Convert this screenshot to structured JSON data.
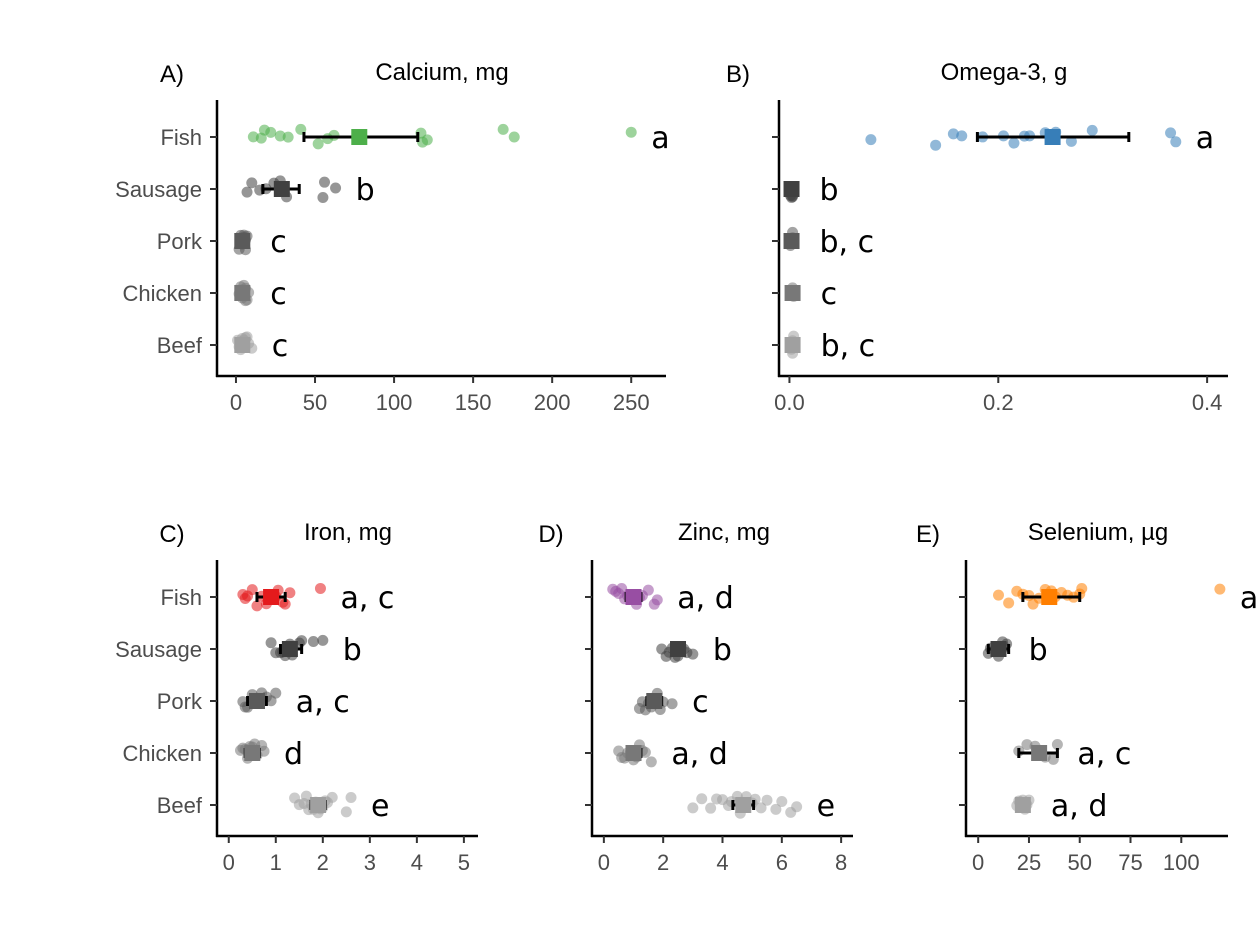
{
  "categories": [
    "Fish",
    "Sausage",
    "Pork",
    "Chicken",
    "Beef"
  ],
  "chart_data": [
    {
      "type": "scatter",
      "tag": "A)",
      "title": "Calcium, mg",
      "xlim": [
        -12,
        272
      ],
      "xticks": [
        0,
        50,
        100,
        150,
        200,
        250
      ],
      "color": "#4daf4a",
      "series": [
        {
          "category": "Fish",
          "mean": 78,
          "ci": [
            43,
            115
          ],
          "sig": "a",
          "color": "#4daf4a",
          "points": [
            11,
            16,
            18,
            22,
            28,
            33,
            41,
            52,
            58,
            62,
            117,
            118,
            121,
            169,
            176,
            250
          ]
        },
        {
          "category": "Sausage",
          "mean": 29,
          "ci": [
            17,
            40
          ],
          "sig": "b",
          "color": "#404040",
          "points": [
            7,
            10,
            15,
            19,
            24,
            28,
            32,
            55,
            56,
            63
          ]
        },
        {
          "category": "Pork",
          "mean": 4,
          "ci": [
            3,
            5
          ],
          "sig": "c",
          "color": "#5a5a5a",
          "points": [
            2,
            3,
            3,
            4,
            4,
            5,
            5,
            6,
            6,
            7
          ]
        },
        {
          "category": "Chicken",
          "mean": 4,
          "ci": [
            3,
            5
          ],
          "sig": "c",
          "color": "#787878",
          "points": [
            2,
            3,
            3,
            4,
            4,
            5,
            5,
            6,
            6,
            7,
            8
          ]
        },
        {
          "category": "Beef",
          "mean": 4,
          "ci": [
            3,
            5
          ],
          "sig": "c",
          "color": "#a0a0a0",
          "points": [
            1,
            2,
            3,
            3,
            4,
            4,
            5,
            5,
            6,
            7,
            8,
            10
          ]
        }
      ]
    },
    {
      "type": "scatter",
      "tag": "B)",
      "title": "Omega-3, g",
      "xlim": [
        -0.01,
        0.42
      ],
      "xticks": [
        0.0,
        0.2,
        0.4
      ],
      "xtick_labels": [
        "0.0",
        "0.2",
        "0.4"
      ],
      "color": "#377eb8",
      "series": [
        {
          "category": "Fish",
          "mean": 0.252,
          "ci": [
            0.18,
            0.325
          ],
          "sig": "a",
          "color": "#377eb8",
          "points": [
            0.078,
            0.14,
            0.157,
            0.165,
            0.185,
            0.205,
            0.215,
            0.225,
            0.23,
            0.245,
            0.255,
            0.27,
            0.29,
            0.365,
            0.37
          ]
        },
        {
          "category": "Sausage",
          "mean": 0.002,
          "ci": [
            0.0,
            0.004
          ],
          "sig": "b",
          "color": "#404040",
          "points": [
            0.001,
            0.002,
            0.003,
            0.003
          ]
        },
        {
          "category": "Pork",
          "mean": 0.002,
          "ci": [
            0.0,
            0.004
          ],
          "sig": "b, c",
          "color": "#5a5a5a",
          "points": [
            0.001,
            0.002,
            0.002,
            0.003,
            0.003
          ]
        },
        {
          "category": "Chicken",
          "mean": 0.003,
          "ci": [
            0.001,
            0.005
          ],
          "sig": "c",
          "color": "#787878",
          "points": [
            0.002,
            0.003,
            0.003,
            0.004
          ]
        },
        {
          "category": "Beef",
          "mean": 0.003,
          "ci": [
            0.001,
            0.005
          ],
          "sig": "b, c",
          "color": "#a0a0a0",
          "points": [
            0.002,
            0.003,
            0.003,
            0.004
          ]
        }
      ]
    },
    {
      "type": "scatter",
      "tag": "C)",
      "title": "Iron, mg",
      "xlim": [
        -0.25,
        5.3
      ],
      "xticks": [
        0,
        1,
        2,
        3,
        4,
        5
      ],
      "color": "#e41a1c",
      "series": [
        {
          "category": "Fish",
          "mean": 0.9,
          "ci": [
            0.6,
            1.2
          ],
          "sig": "a, c",
          "color": "#e41a1c",
          "points": [
            0.3,
            0.35,
            0.4,
            0.5,
            0.6,
            0.7,
            0.8,
            0.9,
            1.0,
            1.05,
            1.15,
            1.2,
            1.3,
            1.95
          ]
        },
        {
          "category": "Sausage",
          "mean": 1.3,
          "ci": [
            1.1,
            1.55
          ],
          "sig": "b",
          "color": "#404040",
          "points": [
            0.9,
            1.0,
            1.1,
            1.15,
            1.2,
            1.3,
            1.35,
            1.5,
            1.55,
            1.8,
            2.0
          ]
        },
        {
          "category": "Pork",
          "mean": 0.6,
          "ci": [
            0.4,
            0.8
          ],
          "sig": "a, c",
          "color": "#5a5a5a",
          "points": [
            0.3,
            0.35,
            0.4,
            0.5,
            0.6,
            0.7,
            0.8,
            0.9,
            1.0
          ]
        },
        {
          "category": "Chicken",
          "mean": 0.5,
          "ci": [
            0.35,
            0.65
          ],
          "sig": "d",
          "color": "#787878",
          "points": [
            0.25,
            0.3,
            0.35,
            0.4,
            0.45,
            0.5,
            0.55,
            0.6,
            0.7,
            0.75
          ]
        },
        {
          "category": "Beef",
          "mean": 1.9,
          "ci": [
            1.75,
            2.05
          ],
          "sig": "e",
          "color": "#a0a0a0",
          "points": [
            1.4,
            1.5,
            1.6,
            1.65,
            1.7,
            1.75,
            1.8,
            1.85,
            1.9,
            1.95,
            2.0,
            2.05,
            2.1,
            2.2,
            2.5,
            2.6
          ]
        }
      ]
    },
    {
      "type": "scatter",
      "tag": "D)",
      "title": "Zinc, mg",
      "xlim": [
        -0.4,
        8.4
      ],
      "xticks": [
        0,
        2,
        4,
        6,
        8
      ],
      "color": "#984ea3",
      "series": [
        {
          "category": "Fish",
          "mean": 1.0,
          "ci": [
            0.75,
            1.25
          ],
          "sig": "a, d",
          "color": "#984ea3",
          "points": [
            0.3,
            0.4,
            0.5,
            0.6,
            0.7,
            0.8,
            0.9,
            1.0,
            1.1,
            1.2,
            1.3,
            1.5,
            1.7,
            1.8
          ]
        },
        {
          "category": "Sausage",
          "mean": 2.5,
          "ci": [
            2.3,
            2.7
          ],
          "sig": "b",
          "color": "#404040",
          "points": [
            1.95,
            2.1,
            2.2,
            2.3,
            2.4,
            2.5,
            2.6,
            2.7,
            2.8,
            3.0
          ]
        },
        {
          "category": "Pork",
          "mean": 1.7,
          "ci": [
            1.45,
            1.95
          ],
          "sig": "c",
          "color": "#5a5a5a",
          "points": [
            1.2,
            1.3,
            1.4,
            1.5,
            1.6,
            1.7,
            1.8,
            1.9,
            2.0,
            2.3
          ]
        },
        {
          "category": "Chicken",
          "mean": 1.0,
          "ci": [
            0.8,
            1.25
          ],
          "sig": "a, d",
          "color": "#787878",
          "points": [
            0.5,
            0.6,
            0.7,
            0.8,
            0.9,
            1.0,
            1.1,
            1.2,
            1.3,
            1.4,
            1.6
          ]
        },
        {
          "category": "Beef",
          "mean": 4.7,
          "ci": [
            4.35,
            5.05
          ],
          "sig": "e",
          "color": "#a0a0a0",
          "points": [
            3.0,
            3.3,
            3.6,
            3.8,
            4.0,
            4.2,
            4.3,
            4.5,
            4.6,
            4.7,
            4.8,
            5.0,
            5.1,
            5.3,
            5.5,
            5.8,
            6.0,
            6.3,
            6.5
          ]
        }
      ]
    },
    {
      "type": "scatter",
      "tag": "E)",
      "title": "Selenium, µg",
      "xlim": [
        -6,
        123
      ],
      "xticks": [
        0,
        25,
        50,
        75,
        100
      ],
      "color": "#ff7f00",
      "series": [
        {
          "category": "Fish",
          "mean": 35,
          "ci": [
            22,
            50
          ],
          "sig": "a, c, d",
          "color": "#ff7f00",
          "points": [
            10,
            15,
            19,
            22,
            25,
            27,
            30,
            33,
            36,
            38,
            41,
            44,
            47,
            50,
            51,
            119
          ]
        },
        {
          "category": "Sausage",
          "mean": 10,
          "ci": [
            5,
            15
          ],
          "sig": "b",
          "color": "#404040",
          "points": [
            5,
            6,
            8,
            10,
            12,
            13,
            14
          ]
        },
        {
          "category": "Pork",
          "mean": null,
          "ci": null,
          "sig": "",
          "color": "#5a5a5a",
          "points": []
        },
        {
          "category": "Chicken",
          "mean": 30,
          "ci": [
            20,
            39
          ],
          "sig": "a, c",
          "color": "#787878",
          "points": [
            20,
            24,
            28,
            33,
            37,
            39
          ]
        },
        {
          "category": "Beef",
          "mean": 22,
          "ci": [
            19,
            25
          ],
          "sig": "a, d",
          "color": "#a0a0a0",
          "points": [
            19,
            20,
            21,
            22,
            23,
            24,
            25
          ]
        }
      ]
    }
  ]
}
